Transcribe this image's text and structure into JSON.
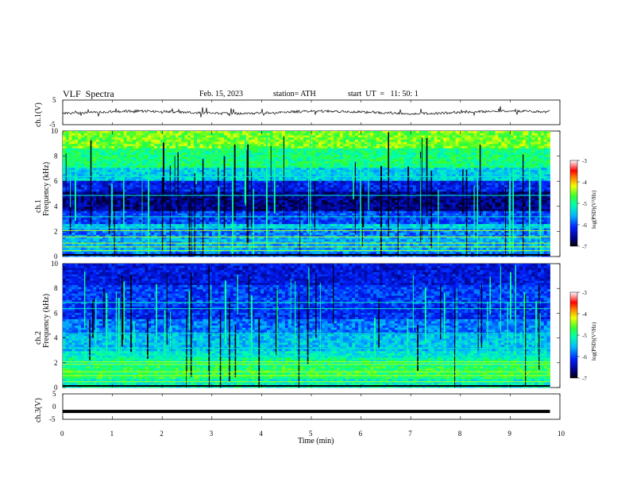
{
  "header": {
    "title": "VLF  Spectra",
    "date": "Feb. 15, 2023",
    "station": "station= ATH",
    "start": "start  UT  =   11: 50: 1"
  },
  "chart_data": [
    {
      "type": "line",
      "panel": "ch1-waveform",
      "ylabel": "ch.1(V)",
      "ylim": [
        -5,
        5
      ],
      "yticks": [
        "5",
        "-5"
      ],
      "xlim": [
        0,
        10
      ],
      "series": [
        {
          "values_note": "",
          "x": [
            0,
            9.8
          ],
          "y": [
            0,
            0
          ]
        }
      ]
    },
    {
      "type": "heatmap",
      "panel": "ch1-spectrogram",
      "ylabel": "ch.1\nFrequency (kHz)",
      "ylabel_line1": "ch.1",
      "ylabel_line2": "Frequency  (kHz)",
      "ylim": [
        0,
        10
      ],
      "yticks": [
        "0",
        "2",
        "4",
        "6",
        "8",
        "10"
      ],
      "xlim": [
        0,
        10
      ],
      "data_extent_min": 9.8,
      "colorbar": {
        "label": "log(PSD)(V²/Hz)",
        "range": [
          -7,
          -3
        ],
        "ticks": [
          "-3",
          "-4",
          "-5",
          "-6",
          "-7"
        ]
      }
    },
    {
      "type": "heatmap",
      "panel": "ch2-spectrogram",
      "ylabel_line1": "ch.2",
      "ylabel_line2": "Frequency  (kHz)",
      "ylim": [
        0,
        10
      ],
      "yticks": [
        "0",
        "2",
        "4",
        "6",
        "8",
        "10"
      ],
      "xlim": [
        0,
        10
      ],
      "data_extent_min": 9.8,
      "colorbar": {
        "label": "log(PSD)(V²/Hz)",
        "range": [
          -7,
          -3
        ],
        "ticks": [
          "-3",
          "-4",
          "-5",
          "-6",
          "-7"
        ]
      }
    },
    {
      "type": "line",
      "panel": "ch3-waveform",
      "ylabel": "ch.3(V)",
      "ylim": [
        -5,
        5
      ],
      "yticks": [
        "5",
        "0",
        "-5"
      ],
      "xlim": [
        0,
        10
      ],
      "xlabel": "Time  (min)",
      "xticks": [
        "0",
        "1",
        "2",
        "3",
        "4",
        "5",
        "6",
        "7",
        "8",
        "9",
        "10"
      ],
      "series": [
        {
          "x": [
            0,
            9.8
          ],
          "y": [
            -1.9,
            -1.9
          ]
        }
      ]
    }
  ]
}
